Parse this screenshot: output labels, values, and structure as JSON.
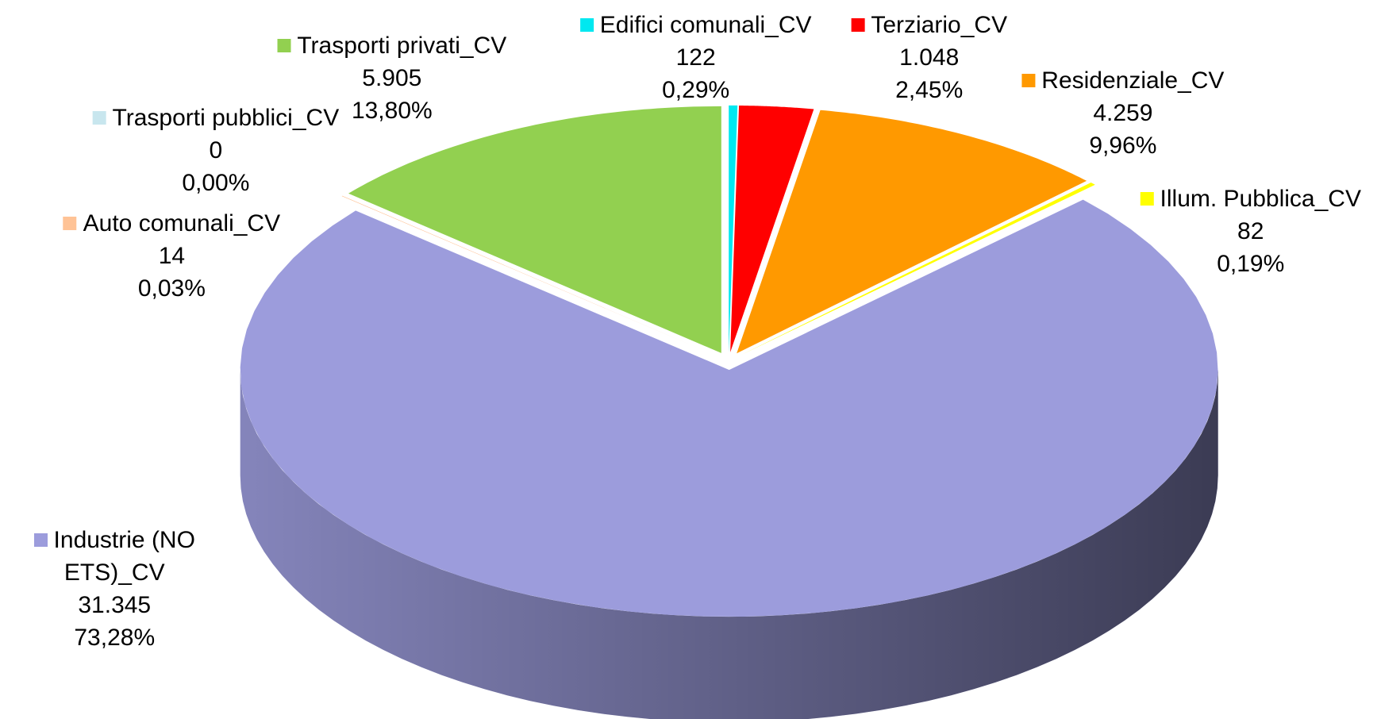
{
  "chart_data": {
    "type": "pie3d",
    "categories": [
      "Edifici comunali_CV",
      "Terziario_CV",
      "Residenziale_CV",
      "Illum. Pubblica_CV",
      "Industrie (NO ETS)_CV",
      "Auto comunali_CV",
      "Trasporti pubblici_CV",
      "Trasporti privati_CV"
    ],
    "values": [
      122,
      1048,
      4259,
      82,
      31345,
      14,
      0,
      5905
    ],
    "value_labels": [
      "122",
      "1.048",
      "4.259",
      "82",
      "31.345",
      "14",
      "0",
      "5.905"
    ],
    "percents": [
      0.29,
      2.45,
      9.96,
      0.19,
      73.28,
      0.03,
      0.0,
      13.8
    ],
    "percent_labels": [
      "0,29%",
      "2,45%",
      "9,96%",
      "0,19%",
      "73,28%",
      "0,03%",
      "0,00%",
      "13,80%"
    ],
    "colors": [
      "#00e8f0",
      "#ff0000",
      "#ff9900",
      "#ffff00",
      "#9c9cdc",
      "#ffc396",
      "#c8e6ee",
      "#92d050"
    ]
  }
}
